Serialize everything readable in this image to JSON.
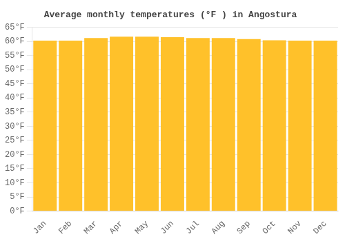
{
  "chart_data": {
    "type": "bar",
    "title": "Average monthly temperatures (°F ) in Angostura",
    "categories": [
      "Jan",
      "Feb",
      "Mar",
      "Apr",
      "May",
      "Jun",
      "Jul",
      "Aug",
      "Sep",
      "Oct",
      "Nov",
      "Dec"
    ],
    "values": [
      60.3,
      60.3,
      61.2,
      61.7,
      61.7,
      61.5,
      61.2,
      61.2,
      60.8,
      60.4,
      60.3,
      60.3
    ],
    "color": "#FFC12A",
    "ylim": [
      0,
      65
    ],
    "yticks": [
      {
        "value": 0,
        "label": "0°F"
      },
      {
        "value": 5,
        "label": "5°F"
      },
      {
        "value": 10,
        "label": "10°F"
      },
      {
        "value": 15,
        "label": "15°F"
      },
      {
        "value": 20,
        "label": "20°F"
      },
      {
        "value": 25,
        "label": "25°F"
      },
      {
        "value": 30,
        "label": "30°F"
      },
      {
        "value": 35,
        "label": "35°F"
      },
      {
        "value": 40,
        "label": "40°F"
      },
      {
        "value": 45,
        "label": "45°F"
      },
      {
        "value": 50,
        "label": "50°F"
      },
      {
        "value": 55,
        "label": "55°F"
      },
      {
        "value": 60,
        "label": "60°F"
      },
      {
        "value": 65,
        "label": "65°F"
      }
    ],
    "grid": true
  }
}
